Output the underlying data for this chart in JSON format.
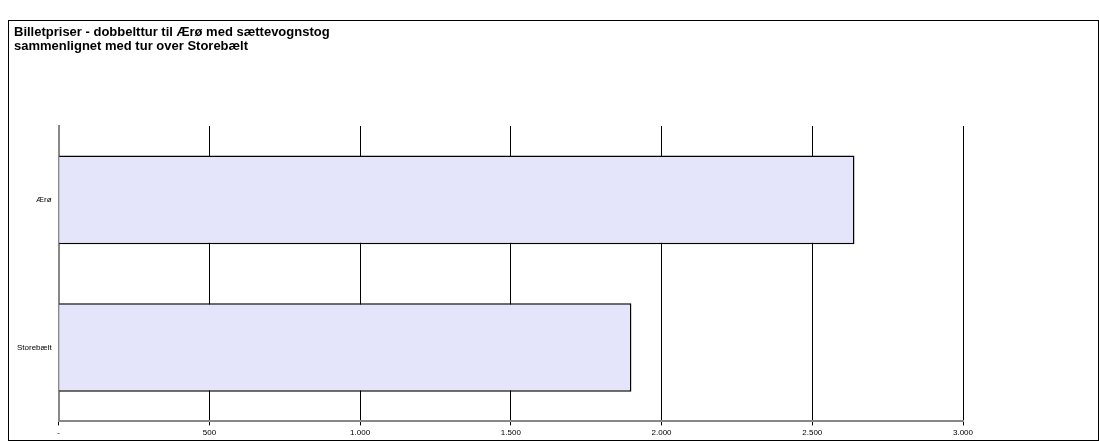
{
  "chart_data": {
    "type": "bar",
    "orientation": "horizontal",
    "title": "Billetpriser - dobbelttur til Ærø med sættevognstog\nsammenlignet med tur over Storebælt",
    "categories": [
      "Ærø",
      "Storebælt"
    ],
    "values": [
      2640,
      1900
    ],
    "color": "#e4e4fa",
    "xlim": [
      0,
      3000
    ],
    "xticks": [
      {
        "value": 0,
        "label": "-"
      },
      500,
      {
        "value": 1000,
        "label": "1.000"
      },
      {
        "value": 1500,
        "label": "1.500"
      },
      {
        "value": 2000,
        "label": "2.000"
      },
      {
        "value": 2500,
        "label": "2.500"
      },
      {
        "value": 3000,
        "label": "3.000"
      }
    ],
    "grid": "x",
    "legend": false
  }
}
